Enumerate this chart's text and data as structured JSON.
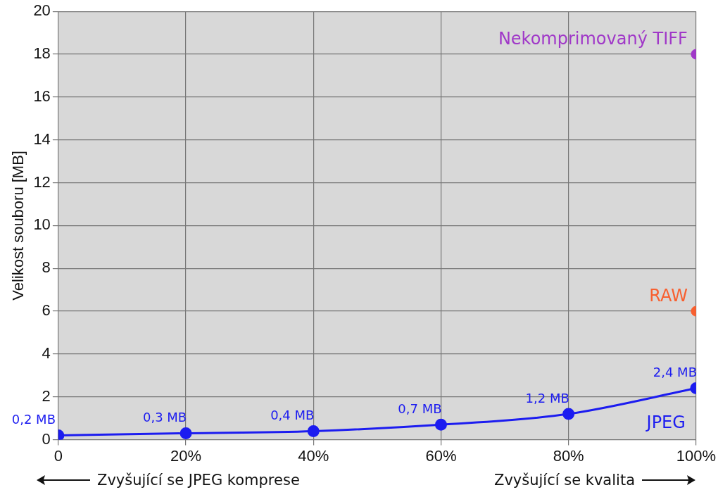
{
  "chart_data": {
    "type": "line",
    "ylabel": "Velikost souboru [MB]",
    "xlim": [
      0,
      100
    ],
    "xticks": [
      {
        "value": 0,
        "label": "0"
      },
      {
        "value": 20,
        "label": "20%"
      },
      {
        "value": 40,
        "label": "40%"
      },
      {
        "value": 60,
        "label": "60%"
      },
      {
        "value": 80,
        "label": "80%"
      },
      {
        "value": 100,
        "label": "100%"
      }
    ],
    "ylim": [
      0,
      20
    ],
    "yticks": [
      0,
      2,
      4,
      6,
      8,
      10,
      12,
      14,
      16,
      18,
      20
    ],
    "grid": true,
    "legend": false,
    "marker": "circle",
    "series": [
      {
        "name": "JPEG",
        "color": "#1c1cf0",
        "x": [
          0,
          20,
          40,
          60,
          80,
          100
        ],
        "values": [
          0.2,
          0.3,
          0.4,
          0.7,
          1.2,
          2.4
        ],
        "value_labels": [
          "0,2 MB",
          "0,3 MB",
          "0,4 MB",
          "0,7 MB",
          "1,2 MB",
          "2,4 MB"
        ]
      },
      {
        "name": "RAW",
        "type": "scatter",
        "color": "#f86030",
        "x": [
          100
        ],
        "values": [
          6
        ]
      },
      {
        "name": "Nekomprimovaný TIFF",
        "type": "scatter",
        "color": "#a038c8",
        "x": [
          100
        ],
        "values": [
          18
        ]
      }
    ],
    "annotations": [
      "Zvyšující se JPEG komprese",
      "Zvyšující se kvalita"
    ]
  }
}
